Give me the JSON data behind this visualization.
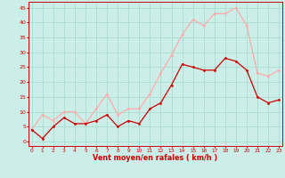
{
  "x": [
    0,
    1,
    2,
    3,
    4,
    5,
    6,
    7,
    8,
    9,
    10,
    11,
    12,
    13,
    14,
    15,
    16,
    17,
    18,
    19,
    20,
    21,
    22,
    23
  ],
  "vent_moyen": [
    4,
    1,
    5,
    8,
    6,
    6,
    7,
    9,
    5,
    7,
    6,
    11,
    13,
    19,
    26,
    25,
    24,
    24,
    28,
    27,
    24,
    15,
    13,
    14
  ],
  "rafales": [
    4,
    9,
    7,
    10,
    10,
    6,
    11,
    16,
    9,
    11,
    11,
    16,
    23,
    29,
    36,
    41,
    39,
    43,
    43,
    45,
    39,
    23,
    22,
    24
  ],
  "color_moyen": "#cc0000",
  "color_rafales": "#ffaaaa",
  "bg_color": "#cceee8",
  "grid_color": "#aaddcc",
  "xlabel": "Vent moyen/en rafales ( km/h )",
  "yticks": [
    0,
    5,
    10,
    15,
    20,
    25,
    30,
    35,
    40,
    45
  ],
  "ylim": [
    -1.5,
    47
  ],
  "xlim": [
    -0.3,
    23.3
  ]
}
